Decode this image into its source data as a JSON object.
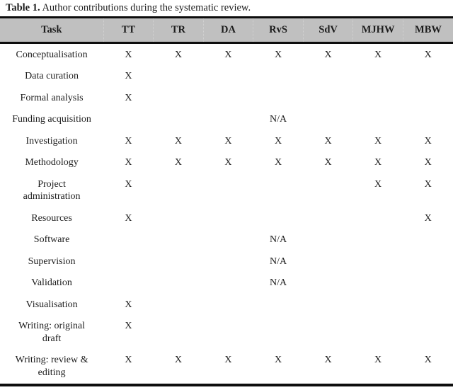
{
  "caption": {
    "label": "Table 1.",
    "text": " Author contributions during the systematic review."
  },
  "table": {
    "columns": [
      "Task",
      "TT",
      "TR",
      "DA",
      "RvS",
      "SdV",
      "MJHW",
      "MBW"
    ],
    "rows": [
      {
        "task": "Conceptualisation",
        "cells": [
          "X",
          "X",
          "X",
          "X",
          "X",
          "X",
          "X"
        ]
      },
      {
        "task": "Data curation",
        "cells": [
          "X",
          "",
          "",
          "",
          "",
          "",
          ""
        ]
      },
      {
        "task": "Formal analysis",
        "cells": [
          "X",
          "",
          "",
          "",
          "",
          "",
          ""
        ]
      },
      {
        "task": "Funding acquisition",
        "cells": [
          "",
          "",
          "",
          "N/A",
          "",
          "",
          ""
        ]
      },
      {
        "task": "Investigation",
        "cells": [
          "X",
          "X",
          "X",
          "X",
          "X",
          "X",
          "X"
        ]
      },
      {
        "task": "Methodology",
        "cells": [
          "X",
          "X",
          "X",
          "X",
          "X",
          "X",
          "X"
        ]
      },
      {
        "task": "Project\nadministration",
        "cells": [
          "X",
          "",
          "",
          "",
          "",
          "X",
          "X"
        ]
      },
      {
        "task": "Resources",
        "cells": [
          "X",
          "",
          "",
          "",
          "",
          "",
          "X"
        ]
      },
      {
        "task": "Software",
        "cells": [
          "",
          "",
          "",
          "N/A",
          "",
          "",
          ""
        ]
      },
      {
        "task": "Supervision",
        "cells": [
          "",
          "",
          "",
          "N/A",
          "",
          "",
          ""
        ]
      },
      {
        "task": "Validation",
        "cells": [
          "",
          "",
          "",
          "N/A",
          "",
          "",
          ""
        ]
      },
      {
        "task": "Visualisation",
        "cells": [
          "X",
          "",
          "",
          "",
          "",
          "",
          ""
        ]
      },
      {
        "task": "Writing: original\ndraft",
        "cells": [
          "X",
          "",
          "",
          "",
          "",
          "",
          ""
        ]
      },
      {
        "task": "Writing: review &\nediting",
        "cells": [
          "X",
          "X",
          "X",
          "X",
          "X",
          "X",
          "X"
        ]
      }
    ]
  },
  "colors": {
    "header_bg": "#c0c0c0",
    "rule": "#0d0d0d",
    "text": "#1c1c1c"
  }
}
